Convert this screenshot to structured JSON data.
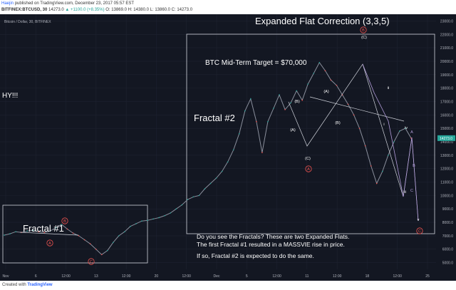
{
  "header": {
    "author": "Haejin",
    "published_text": "published on TradingView.com, December 23, 2017 05:57 EST",
    "symbol_line": "BITFINEX:BTCUSD, 30",
    "last": "14273.0",
    "change": "▲ +1100.0 (+8.35%)",
    "ohlc_line": "O: 13869.0 H: 14380.0 L: 13860.0 C: 14273.0"
  },
  "footer": {
    "created_with": "Created with",
    "brand": "TradingView"
  },
  "chart_data": {
    "type": "line",
    "title": "Expanded Flat Correction (3,3,5)",
    "symbol_label": "Bitcoin / Dollar, 30, BITFINEX",
    "ylim": [
      4500,
      23500
    ],
    "y_ticks": [
      5000,
      6000,
      7000,
      8000,
      9000,
      10000,
      11000,
      12000,
      13000,
      14000,
      15000,
      16000,
      17000,
      18000,
      19000,
      20000,
      21000,
      22000,
      23000
    ],
    "x_tick_labels": [
      "Nov",
      "6",
      "12:00",
      "13",
      "12:00",
      "20",
      "12:00",
      "Dec",
      "5",
      "12:00",
      "11",
      "12:00",
      "18",
      "12:00",
      "25"
    ],
    "last_price_label": "14273.0",
    "series": [
      {
        "values": [
          7050,
          7150,
          7300,
          7250,
          7350,
          7400,
          7300,
          7250,
          7350,
          7600,
          7850,
          7500,
          7200,
          7000,
          6700,
          6400,
          6000,
          5600,
          5900,
          6500,
          7000,
          7300,
          7700,
          7900,
          8100,
          8150,
          8250,
          8350,
          8500,
          8700,
          9000,
          9300,
          9700,
          9900,
          10000,
          10500,
          10900,
          11300,
          11800,
          12500,
          13400,
          14600,
          16300,
          17200,
          15500,
          13200,
          15500,
          16500,
          17500,
          16400,
          16900,
          17800,
          17100,
          18300,
          19100,
          19900,
          19300,
          18600,
          18200,
          17500,
          16800,
          16000,
          15000,
          13700,
          12200,
          10900,
          11800,
          13000,
          14000,
          14800,
          15000,
          14273
        ]
      }
    ],
    "annotations": [
      "BTC Mid-Term Target = $70,000",
      "Fractal #2",
      "Fractal #1",
      "HY!!!",
      "Do you see the Fractals? These are two Expanded Flats.",
      "The first Fractal #1 resulted in a MASSVIE rise in price.",
      "If so, Fractal #2 is expected to do the same."
    ],
    "wave_labels": [
      "A",
      "B",
      "C",
      "(A)",
      "(B)",
      "(C)",
      "A",
      "B",
      "C",
      "i",
      "ii",
      "iii",
      "iv",
      "v",
      "(B)",
      "(A)",
      "(C)",
      "A",
      "B",
      "C"
    ]
  }
}
